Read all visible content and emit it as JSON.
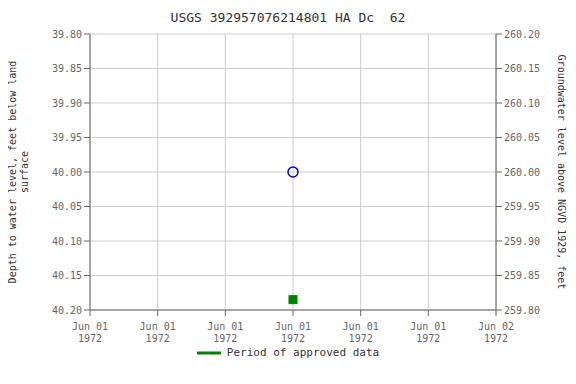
{
  "chart_data": {
    "type": "scatter",
    "title": "USGS 392957076214801 HA Dc  62",
    "y_label": "Depth to water level, feet below land\n surface",
    "y2_label": "Groundwater level above NGVD 1929, feet",
    "categories": [
      "Jun 01\n1972",
      "Jun 01\n1972",
      "Jun 01\n1972",
      "Jun 01\n1972",
      "Jun 01\n1972",
      "Jun 01\n1972",
      "Jun 02\n1972"
    ],
    "ylim": [
      40.2,
      39.8
    ],
    "yticks": [
      {
        "value": 39.8,
        "label": "39.80"
      },
      {
        "value": 39.85,
        "label": "39.85"
      },
      {
        "value": 39.9,
        "label": "39.90"
      },
      {
        "value": 39.95,
        "label": "39.95"
      },
      {
        "value": 40.0,
        "label": "40.00"
      },
      {
        "value": 40.05,
        "label": "40.05"
      },
      {
        "value": 40.1,
        "label": "40.10"
      },
      {
        "value": 40.15,
        "label": "40.15"
      },
      {
        "value": 40.2,
        "label": "40.20"
      }
    ],
    "y2lim": [
      259.8,
      260.2
    ],
    "y2ticks": [
      {
        "value": 260.2,
        "label": "260.20"
      },
      {
        "value": 260.15,
        "label": "260.15"
      },
      {
        "value": 260.1,
        "label": "260.10"
      },
      {
        "value": 260.05,
        "label": "260.05"
      },
      {
        "value": 260.0,
        "label": "260.00"
      },
      {
        "value": 259.95,
        "label": "259.95"
      },
      {
        "value": 259.9,
        "label": "259.90"
      },
      {
        "value": 259.85,
        "label": "259.85"
      },
      {
        "value": 259.8,
        "label": "259.80"
      }
    ],
    "series": [
      {
        "color": "#0000cc",
        "marker": "open_circle",
        "values": [
          null,
          null,
          null,
          40.0,
          null,
          null,
          null
        ]
      },
      {
        "name": "Period of approved data",
        "color": "#008000",
        "marker": "square",
        "values": [
          null,
          null,
          null,
          40.185,
          null,
          null,
          null
        ]
      }
    ],
    "grid": true,
    "legend": "bottom"
  }
}
